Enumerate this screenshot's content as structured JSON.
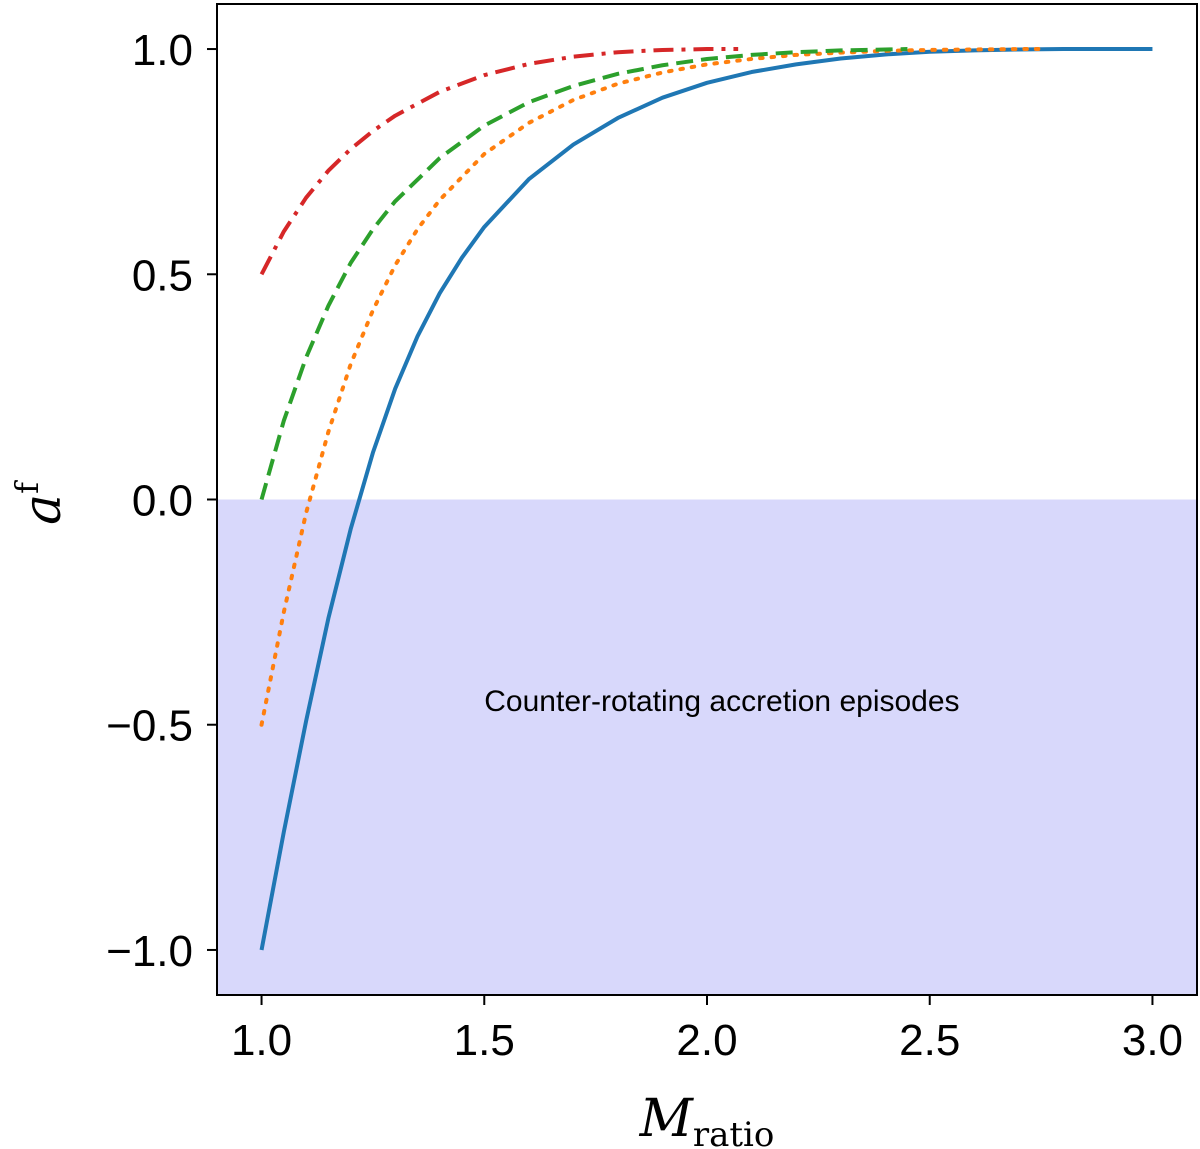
{
  "chart_data": {
    "type": "line",
    "xlabel": {
      "main": "M",
      "sub": "ratio"
    },
    "ylabel": {
      "main": "a",
      "sup": "f"
    },
    "xlim": [
      0.9,
      3.1
    ],
    "ylim": [
      -1.1,
      1.1
    ],
    "xticks": [
      1.0,
      1.5,
      2.0,
      2.5,
      3.0
    ],
    "xtick_labels": [
      "1.0",
      "1.5",
      "2.0",
      "2.5",
      "3.0"
    ],
    "yticks": [
      1.0,
      0.5,
      0.0,
      -0.5,
      -1.0
    ],
    "ytick_labels": [
      "1.0",
      "0.5",
      "0.0",
      "−0.5",
      "−1.0"
    ],
    "shaded_region": {
      "y_from": -1.1,
      "y_to": 0.0,
      "color": "#d8d8fb",
      "label": "Counter-rotating accretion episodes"
    },
    "annotation": {
      "text": "Counter-rotating accretion episodes",
      "x": 1.5,
      "y": -0.47
    },
    "grid": false,
    "series": [
      {
        "color": "#1f77b4",
        "style": "solid",
        "x": [
          1.0,
          1.05,
          1.1,
          1.15,
          1.2,
          1.25,
          1.3,
          1.35,
          1.4,
          1.45,
          1.5,
          1.6,
          1.7,
          1.8,
          1.9,
          2.0,
          2.1,
          2.2,
          2.3,
          2.4,
          2.5,
          2.6,
          2.7,
          2.8,
          2.9,
          3.0
        ],
        "y": [
          -1.0,
          -0.738,
          -0.492,
          -0.264,
          -0.066,
          0.104,
          0.246,
          0.362,
          0.458,
          0.537,
          0.605,
          0.711,
          0.788,
          0.847,
          0.892,
          0.925,
          0.949,
          0.966,
          0.979,
          0.988,
          0.994,
          0.997,
          0.999,
          1.0,
          1.0,
          1.0
        ]
      },
      {
        "color": "#ff7f0e",
        "style": "dotted",
        "x": [
          1.0,
          1.05,
          1.1,
          1.15,
          1.2,
          1.25,
          1.3,
          1.35,
          1.4,
          1.5,
          1.6,
          1.7,
          1.8,
          1.9,
          2.0,
          2.1,
          2.2,
          2.3,
          2.4,
          2.5,
          2.6,
          2.7,
          2.75
        ],
        "y": [
          -0.5,
          -0.25,
          -0.03,
          0.15,
          0.3,
          0.42,
          0.52,
          0.6,
          0.665,
          0.767,
          0.836,
          0.887,
          0.923,
          0.948,
          0.966,
          0.978,
          0.987,
          0.992,
          0.996,
          0.998,
          0.999,
          1.0,
          1.0
        ]
      },
      {
        "color": "#2ca02c",
        "style": "dashed",
        "x": [
          1.0,
          1.05,
          1.1,
          1.15,
          1.2,
          1.25,
          1.3,
          1.4,
          1.5,
          1.6,
          1.7,
          1.8,
          1.9,
          2.0,
          2.1,
          2.2,
          2.3,
          2.4,
          2.45
        ],
        "y": [
          0.0,
          0.175,
          0.315,
          0.43,
          0.525,
          0.6,
          0.662,
          0.758,
          0.83,
          0.882,
          0.918,
          0.945,
          0.964,
          0.978,
          0.987,
          0.993,
          0.997,
          0.999,
          1.0
        ]
      },
      {
        "color": "#d62728",
        "style": "dashdot",
        "x": [
          1.0,
          1.05,
          1.1,
          1.15,
          1.2,
          1.25,
          1.3,
          1.4,
          1.5,
          1.6,
          1.7,
          1.8,
          1.9,
          2.0,
          2.07
        ],
        "y": [
          0.5,
          0.595,
          0.67,
          0.73,
          0.778,
          0.818,
          0.852,
          0.905,
          0.942,
          0.967,
          0.983,
          0.993,
          0.998,
          1.0,
          1.0
        ]
      }
    ]
  }
}
